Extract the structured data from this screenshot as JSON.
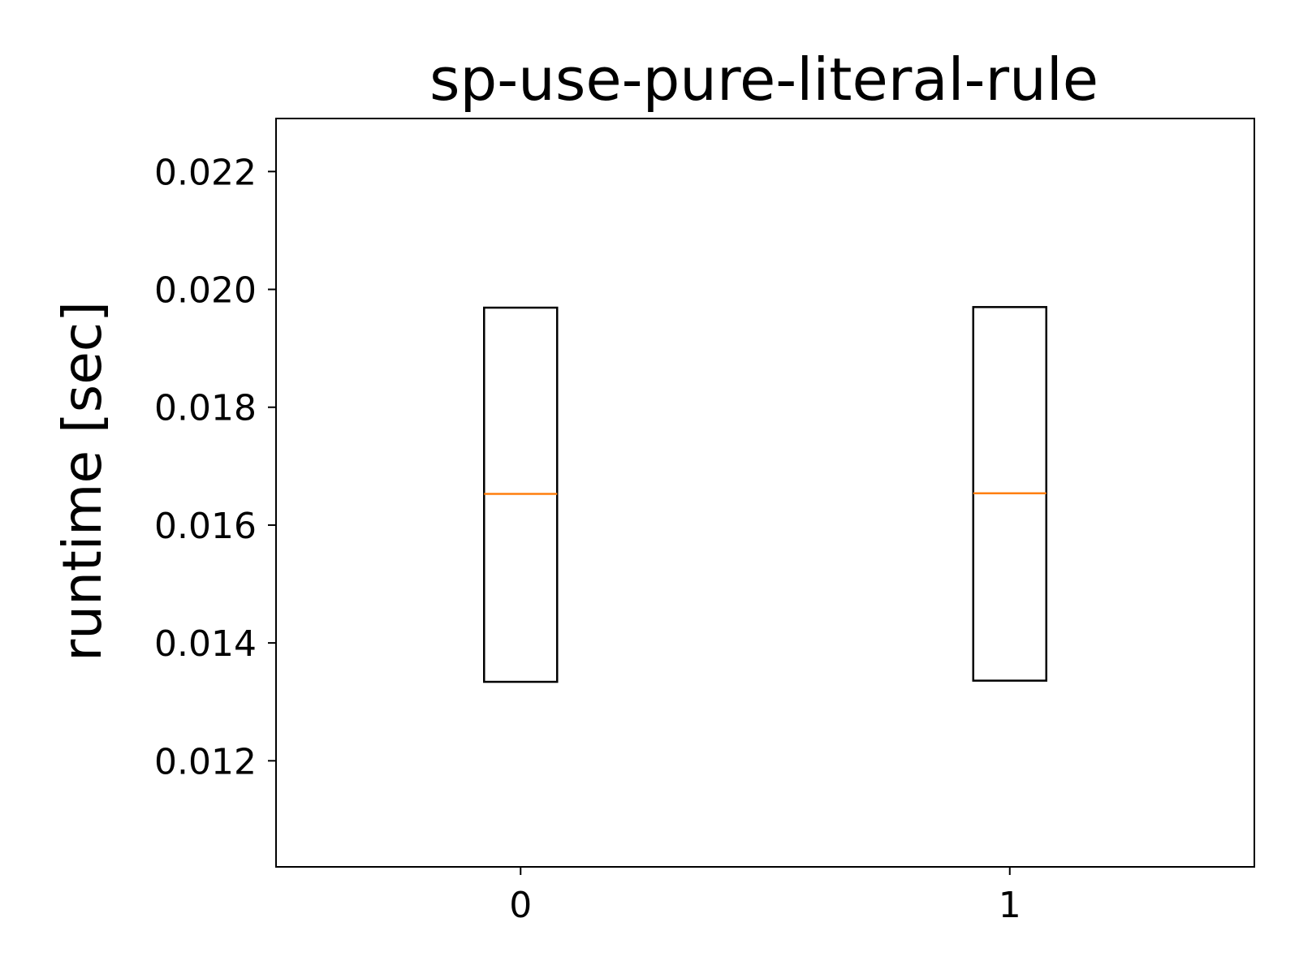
{
  "chart_data": {
    "type": "box",
    "title": "sp-use-pure-literal-rule",
    "xlabel": "",
    "ylabel": "runtime [sec]",
    "categories": [
      "0",
      "1"
    ],
    "category_label_colors": [
      "#ff0000",
      "#000000"
    ],
    "boxes": [
      {
        "category": "0",
        "q1": 0.01334,
        "median": 0.01653,
        "q3": 0.01969
      },
      {
        "category": "1",
        "q1": 0.01336,
        "median": 0.01654,
        "q3": 0.0197
      }
    ],
    "yticks": [
      0.012,
      0.014,
      0.016,
      0.018,
      0.02,
      0.022
    ],
    "ytick_labels": [
      "0.012",
      "0.014",
      "0.016",
      "0.018",
      "0.020",
      "0.022"
    ],
    "ylim": [
      0.0102,
      0.0229
    ],
    "xlim": [
      -0.5,
      1.5
    ],
    "box_color": "#000000",
    "median_color": "#ff7f0e",
    "grid": false,
    "legend": "none"
  }
}
